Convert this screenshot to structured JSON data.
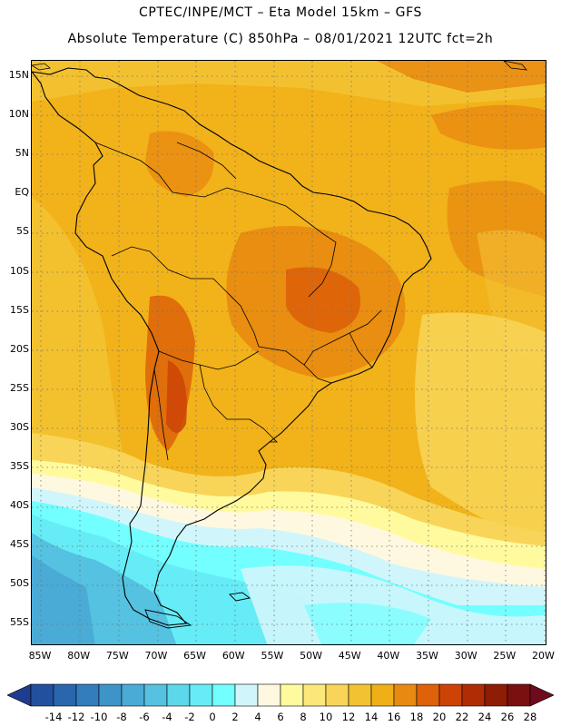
{
  "header": {
    "title_line1": "CPTEC/INPE/MCT  –   Eta Model 15km  –  GFS",
    "title_line2": "Absolute Temperature (C) 850hPa  –  08/01/2021  12UTC  fct=2h"
  },
  "map": {
    "region": "South America",
    "lat_labels": [
      "15N",
      "10N",
      "5N",
      "EQ",
      "5S",
      "10S",
      "15S",
      "20S",
      "25S",
      "30S",
      "35S",
      "40S",
      "45S",
      "50S",
      "55S"
    ],
    "lon_labels": [
      "85W",
      "80W",
      "75W",
      "70W",
      "65W",
      "60W",
      "55W",
      "50W",
      "45W",
      "40W",
      "35W",
      "30W",
      "25W",
      "20W"
    ],
    "gridlines": "dotted"
  },
  "colorbar": {
    "labels": [
      "-14",
      "-12",
      "-10",
      "-8",
      "-6",
      "-4",
      "-2",
      "0",
      "2",
      "4",
      "6",
      "8",
      "10",
      "12",
      "14",
      "16",
      "18",
      "20",
      "22",
      "24",
      "26",
      "28"
    ],
    "colors": [
      "#1f3d8f",
      "#22509e",
      "#2a66ad",
      "#337dbd",
      "#3e94c9",
      "#4aabd6",
      "#54c2e0",
      "#5dd7ea",
      "#66ecf6",
      "#73ffff",
      "#d0f6fc",
      "#fff8e0",
      "#fffa9e",
      "#fce87a",
      "#f8d558",
      "#f3c233",
      "#efb017",
      "#e88a10",
      "#dd6209",
      "#cd4306",
      "#b02c04",
      "#8f1c05",
      "#7a1010",
      "#6e0b1e"
    ]
  }
}
